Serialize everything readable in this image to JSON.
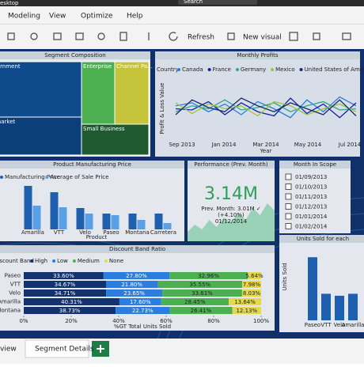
{
  "window": {
    "title": "esktop",
    "search": "Search"
  },
  "menu": [
    "Modeling",
    "View",
    "Optimize",
    "Help"
  ],
  "toolbar": [
    "Refresh",
    "New visual"
  ],
  "treemap": {
    "title": "Segment Composition",
    "cells": [
      "Government",
      "Midmarket",
      "Enterprise",
      "Channel Pa...",
      "Small Business"
    ]
  },
  "line_chart": {
    "type": "line",
    "title": "Monthly Profits",
    "legend_title": "Country",
    "y_label": "Profit & Loss Value",
    "x_label": "Year",
    "xticks": [
      "Sep 2013",
      "Jan 2014",
      "Mar 2014",
      "May 2014",
      "Jul 2014"
    ],
    "ylim": [
      0,
      100
    ],
    "series": [
      {
        "name": "Canada",
        "color": "#2b7de0",
        "values": [
          55,
          60,
          45,
          58,
          40,
          62,
          50,
          35,
          65,
          45,
          70,
          55
        ]
      },
      {
        "name": "France",
        "color": "#12239e",
        "values": [
          50,
          48,
          62,
          40,
          60,
          45,
          38,
          68,
          42,
          58,
          35,
          60
        ]
      },
      {
        "name": "Germany",
        "color": "#2fa58f",
        "values": [
          45,
          55,
          50,
          65,
          48,
          52,
          60,
          45,
          55,
          62,
          48,
          50
        ]
      },
      {
        "name": "Mexico",
        "color": "#9cc63c",
        "values": [
          60,
          42,
          58,
          50,
          55,
          38,
          62,
          55,
          40,
          50,
          58,
          45
        ]
      },
      {
        "name": "United States of America",
        "color": "#1b2a6b",
        "values": [
          40,
          65,
          52,
          45,
          68,
          55,
          45,
          60,
          50,
          40,
          65,
          38
        ]
      }
    ]
  },
  "bar_chart": {
    "type": "bar",
    "title": "Product Manufacturing Price",
    "x_label": "Product",
    "ylim": [
      0,
      60
    ],
    "categories": [
      "Amarilla",
      "VTT",
      "Velo",
      "Paseo",
      "Montana",
      "Carretera"
    ],
    "series": [
      {
        "name": "Manufacturing Price",
        "color": "#1f5fb0",
        "values": [
          55,
          47,
          27,
          20,
          20,
          20
        ]
      },
      {
        "name": "Average of Sale Price",
        "color": "#5aa0e6",
        "values": [
          30,
          28,
          20,
          18,
          12,
          8
        ]
      }
    ]
  },
  "card": {
    "title": "Performance (Prev. Month)",
    "value": "3.14M",
    "lines": [
      "Prev. Month: 3.01M ✓",
      "(+4.10%)",
      "01/12/2014"
    ],
    "trend": [
      20,
      35,
      25,
      45,
      30,
      50,
      40,
      60,
      45,
      70,
      55,
      80,
      65
    ],
    "ylim": [
      0,
      100
    ],
    "color": "#5bc08a"
  },
  "slicer": {
    "title": "Month In Scope",
    "items": [
      "01/09/2013",
      "01/10/2013",
      "01/11/2013",
      "01/12/2013",
      "01/01/2014",
      "01/02/2014"
    ]
  },
  "stacked": {
    "type": "stacked_bar",
    "title": "Discount Band Ratio",
    "legend_title": "Discount Band",
    "x_label": "%GT Total Units Sold",
    "categories": [
      "Paseo",
      "VTT",
      "Velo",
      "Amarilla",
      "Montana"
    ],
    "xlim": [
      0,
      100
    ],
    "xticks": [
      {
        "value": 0,
        "label": "0%"
      },
      {
        "value": 20,
        "label": "20%"
      },
      {
        "value": 40,
        "label": "40%"
      },
      {
        "value": 60,
        "label": "60%"
      },
      {
        "value": 80,
        "label": "80%"
      },
      {
        "value": 100,
        "label": "100%"
      }
    ],
    "series": [
      {
        "name": "High",
        "color": "#12336e",
        "values": [
          33.6,
          34.67,
          34.71,
          40.31,
          38.73
        ],
        "value_labels": [
          "33.60%",
          "34.67%",
          "34.71%",
          "40.31%",
          "38.73%"
        ]
      },
      {
        "name": "Low",
        "color": "#2b7de0",
        "values": [
          27.8,
          21.8,
          23.65,
          17.6,
          22.73
        ],
        "value_labels": [
          "27.80%",
          "21.80%",
          "23.65%",
          "17.60%",
          "22.73%"
        ]
      },
      {
        "name": "Medium",
        "color": "#4caf50",
        "values": [
          32.96,
          35.55,
          33.61,
          28.45,
          26.41
        ],
        "value_labels": [
          "32.96%",
          "35.55%",
          "33.61%",
          "28.45%",
          "26.41%"
        ]
      },
      {
        "name": "None",
        "color": "#e6d84a",
        "values": [
          5.64,
          7.98,
          8.03,
          13.64,
          12.13
        ],
        "value_labels": [
          "5.64%",
          "7.98%",
          "8.03%",
          "13.64%",
          "12.13%"
        ]
      }
    ]
  },
  "units": {
    "type": "bar",
    "title": "Units Sold for each",
    "y_label": "Units Sold",
    "ylim": [
      0,
      100
    ],
    "color": "#1f5fb0",
    "categories": [
      "Paseo",
      "VTT",
      "Velo",
      "Amarilla"
    ],
    "values": [
      95,
      40,
      37,
      40
    ]
  },
  "tabs": [
    "view",
    "Segment Details"
  ]
}
